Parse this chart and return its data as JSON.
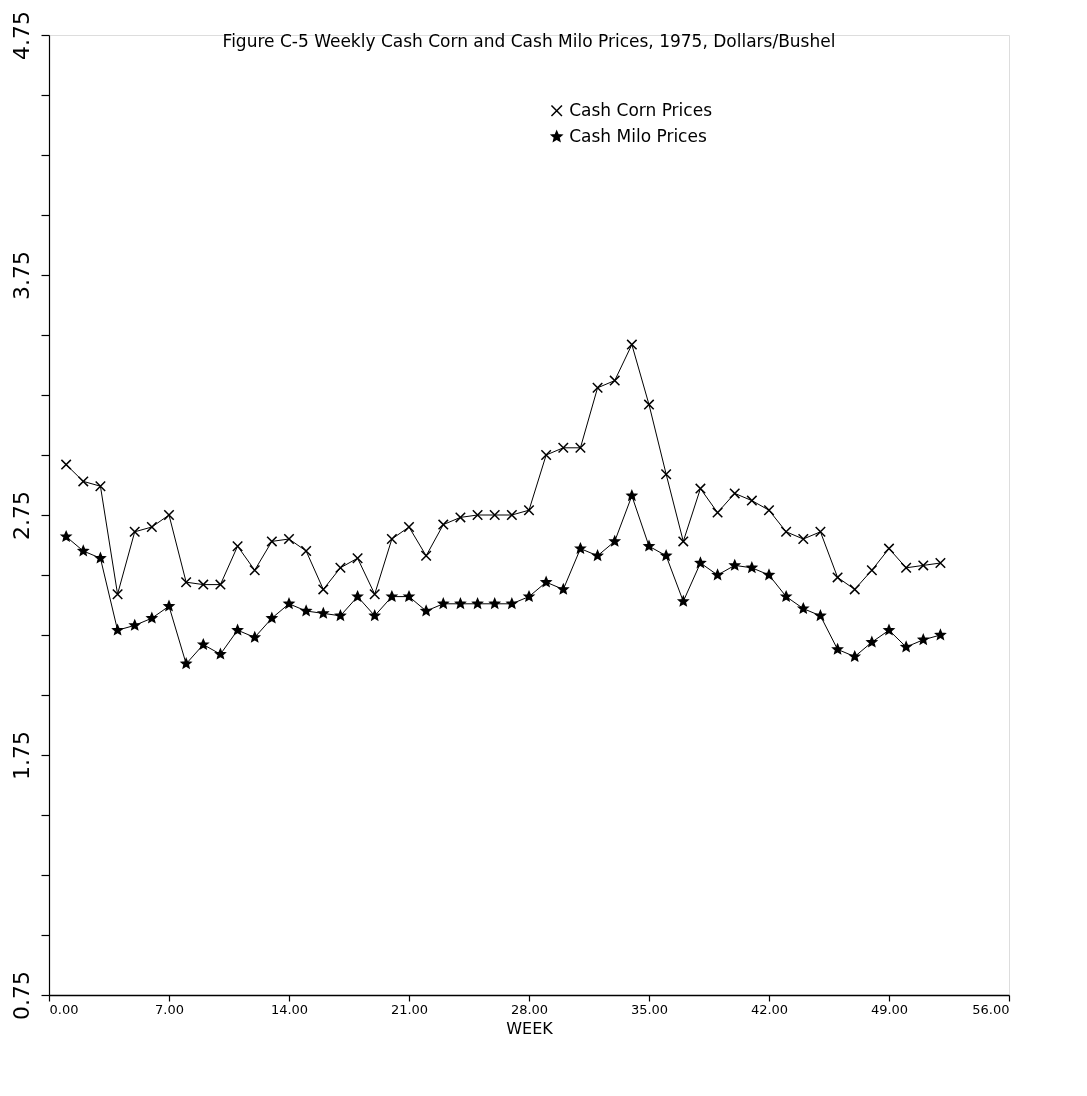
{
  "chart_data": {
    "type": "line",
    "title": "Figure C-5  Weekly Cash Corn and Cash Milo Prices, 1975, Dollars/Bushel",
    "xlabel": "WEEK",
    "x": [
      1,
      2,
      3,
      4,
      5,
      6,
      7,
      8,
      9,
      10,
      11,
      12,
      13,
      14,
      15,
      16,
      17,
      18,
      19,
      20,
      21,
      22,
      23,
      24,
      25,
      26,
      27,
      28,
      29,
      30,
      31,
      32,
      33,
      34,
      35,
      36,
      37,
      38,
      39,
      40,
      41,
      42,
      43,
      44,
      45,
      46,
      47,
      48,
      49,
      50,
      51,
      52
    ],
    "series": [
      {
        "name": "Cash Corn Prices",
        "color": "#000000",
        "marker": "cross",
        "values": [
          2.96,
          2.89,
          2.87,
          2.42,
          2.68,
          2.7,
          2.75,
          2.47,
          2.46,
          2.46,
          2.62,
          2.52,
          2.64,
          2.65,
          2.6,
          2.44,
          2.53,
          2.57,
          2.42,
          2.65,
          2.7,
          2.58,
          2.71,
          2.74,
          2.75,
          2.75,
          2.75,
          2.77,
          3.0,
          3.03,
          3.03,
          3.28,
          3.31,
          3.46,
          3.21,
          2.92,
          2.64,
          2.86,
          2.76,
          2.84,
          2.81,
          2.77,
          2.68,
          2.65,
          2.68,
          2.49,
          2.44,
          2.52,
          2.61,
          2.53,
          2.54,
          2.55
        ]
      },
      {
        "name": "Cash Milo Prices",
        "color": "#000000",
        "marker": "star",
        "values": [
          2.66,
          2.6,
          2.57,
          2.27,
          2.29,
          2.32,
          2.37,
          2.13,
          2.21,
          2.17,
          2.27,
          2.24,
          2.32,
          2.38,
          2.35,
          2.34,
          2.33,
          2.41,
          2.33,
          2.41,
          2.41,
          2.35,
          2.38,
          2.38,
          2.38,
          2.38,
          2.38,
          2.41,
          2.47,
          2.44,
          2.61,
          2.58,
          2.64,
          2.83,
          2.62,
          2.58,
          2.39,
          2.55,
          2.5,
          2.54,
          2.53,
          2.5,
          2.41,
          2.36,
          2.33,
          2.19,
          2.16,
          2.22,
          2.27,
          2.2,
          2.23,
          2.25
        ]
      }
    ],
    "xlim": [
      0,
      56
    ],
    "xticks": [
      {
        "value": 0,
        "label": "0.00"
      },
      {
        "value": 7,
        "label": "7.00"
      },
      {
        "value": 14,
        "label": "14.00"
      },
      {
        "value": 21,
        "label": "21.00"
      },
      {
        "value": 28,
        "label": "28.00"
      },
      {
        "value": 35,
        "label": "35.00"
      },
      {
        "value": 42,
        "label": "42.00"
      },
      {
        "value": 49,
        "label": "49.00"
      },
      {
        "value": 56,
        "label": "56.00"
      }
    ],
    "ylim": [
      0.75,
      4.75
    ],
    "yticks": [
      0.75,
      {
        "value": 1.0,
        "label": null
      },
      {
        "value": 1.25,
        "label": null
      },
      {
        "value": 1.5,
        "label": null
      },
      1.75,
      {
        "value": 2.0,
        "label": null
      },
      {
        "value": 2.25,
        "label": null
      },
      {
        "value": 2.5,
        "label": null
      },
      2.75,
      {
        "value": 3.0,
        "label": null
      },
      {
        "value": 3.25,
        "label": null
      },
      {
        "value": 3.5,
        "label": null
      },
      3.75,
      {
        "value": 4.0,
        "label": null
      },
      {
        "value": 4.25,
        "label": null
      },
      {
        "value": 4.5,
        "label": null
      },
      4.75
    ],
    "legend": "top right",
    "grid": false,
    "line_style": "solid"
  }
}
